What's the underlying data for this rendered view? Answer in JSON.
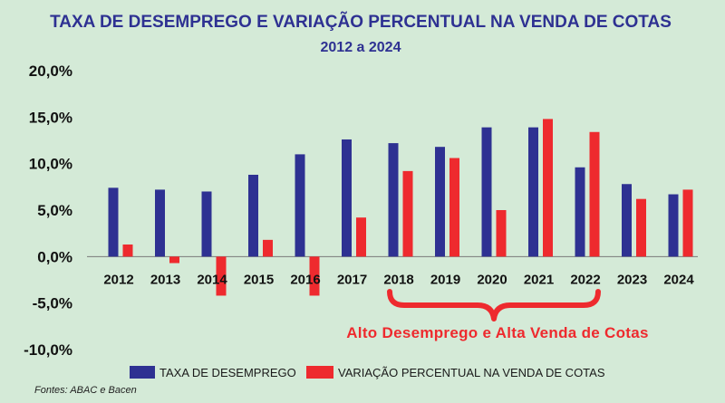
{
  "chart_data": {
    "type": "bar",
    "title": "TAXA DE DESEMPREGO E VARIAÇÃO PERCENTUAL NA VENDA DE COTAS",
    "subtitle": "2012 a 2024",
    "categories": [
      "2012",
      "2013",
      "2014",
      "2015",
      "2016",
      "2017",
      "2018",
      "2019",
      "2020",
      "2021",
      "2022",
      "2023",
      "2024"
    ],
    "series": [
      {
        "name": "TAXA DE DESEMPREGO",
        "color": "#2e3192",
        "values": [
          7.4,
          7.2,
          7.0,
          8.8,
          11.0,
          12.6,
          12.2,
          11.8,
          13.9,
          13.9,
          9.6,
          7.8,
          6.7
        ]
      },
      {
        "name": "VARIAÇÃO PERCENTUAL NA VENDA DE COTAS",
        "color": "#ee2a2e",
        "values": [
          1.3,
          -0.7,
          -4.2,
          1.8,
          -4.2,
          4.2,
          9.2,
          10.6,
          5.0,
          14.8,
          13.4,
          6.2,
          7.2
        ]
      }
    ],
    "ylim": [
      -10,
      20
    ],
    "yticks": [
      "20,0%",
      "15,0%",
      "10,0%",
      "5,0%",
      "0,0%",
      "-5,0%",
      "-10,0%"
    ],
    "grid": false,
    "legend_position": "bottom",
    "annotation": {
      "text": "Alto Desemprego e Alta Venda de Cotas",
      "from_category": "2018",
      "to_category": "2022"
    },
    "source": "Fontes: ABAC e Bacen"
  }
}
